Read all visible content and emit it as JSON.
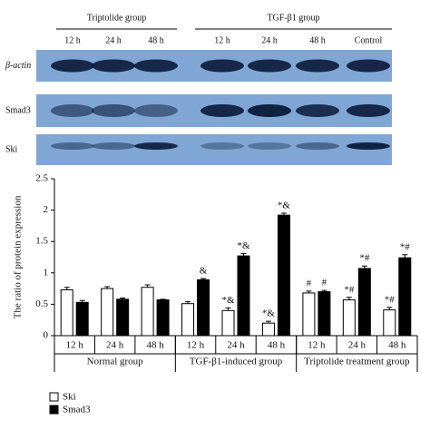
{
  "blot": {
    "groups": [
      "Triptolide group",
      "TGF-β1 group"
    ],
    "lanes": [
      "12 h",
      "24 h",
      "48 h",
      "12 h",
      "24 h",
      "48 h",
      "Control"
    ],
    "rows": [
      "β-actin",
      "Smad3",
      "Ski"
    ]
  },
  "chart_data": {
    "type": "bar",
    "ylabel": "The ratio of protein expression",
    "categories": [
      "12 h",
      "24 h",
      "48 h",
      "12 h",
      "24 h",
      "48 h",
      "12 h",
      "24 h",
      "48 h"
    ],
    "groups": [
      "Normal group",
      "TGF-β1-induced group",
      "Triptolide treatment group"
    ],
    "series": [
      {
        "name": "Ski",
        "color": "#ffffff",
        "values": [
          0.73,
          0.75,
          0.77,
          0.51,
          0.4,
          0.2,
          0.68,
          0.57,
          0.41
        ],
        "errors": [
          0.04,
          0.03,
          0.04,
          0.03,
          0.04,
          0.03,
          0.03,
          0.04,
          0.04
        ],
        "annotations": [
          null,
          null,
          null,
          null,
          "*&",
          "*&",
          "#",
          "*#",
          "*#"
        ]
      },
      {
        "name": "Smad3",
        "color": "#000000",
        "values": [
          0.53,
          0.58,
          0.57,
          0.89,
          1.27,
          1.92,
          0.7,
          1.07,
          1.24
        ],
        "errors": [
          0.03,
          0.02,
          0.01,
          0.02,
          0.04,
          0.03,
          0.02,
          0.04,
          0.05
        ],
        "annotations": [
          null,
          null,
          null,
          "&",
          "*&",
          "*&",
          "#",
          "*#",
          "*#"
        ]
      }
    ],
    "ylim": [
      0,
      2.5
    ],
    "yticks": [
      0,
      0.5,
      1,
      1.5,
      2,
      2.5
    ],
    "grid": false
  }
}
